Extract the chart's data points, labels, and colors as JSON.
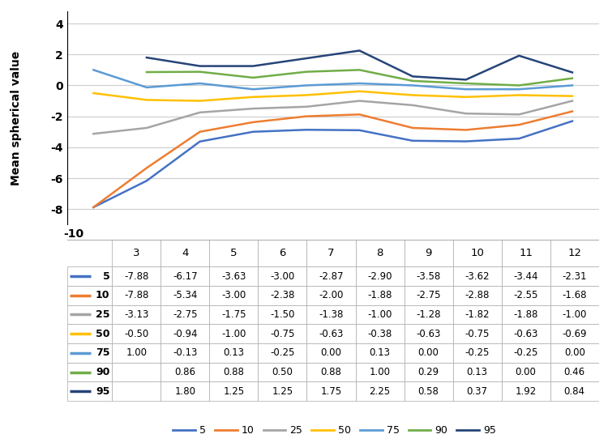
{
  "ages": [
    3,
    4,
    5,
    6,
    7,
    8,
    9,
    10,
    11,
    12
  ],
  "series": {
    "5": {
      "values": [
        -7.88,
        -6.17,
        -3.63,
        -3.0,
        -2.87,
        -2.9,
        -3.58,
        -3.62,
        -3.44,
        -2.31
      ],
      "color": "#4472C4",
      "start_age": 3
    },
    "10": {
      "values": [
        -7.88,
        -5.34,
        -3.0,
        -2.38,
        -2.0,
        -1.88,
        -2.75,
        -2.88,
        -2.55,
        -1.68
      ],
      "color": "#ED7D31",
      "start_age": 3
    },
    "25": {
      "values": [
        -3.13,
        -2.75,
        -1.75,
        -1.5,
        -1.38,
        -1.0,
        -1.28,
        -1.82,
        -1.88,
        -1.0
      ],
      "color": "#A5A5A5",
      "start_age": 3
    },
    "50": {
      "values": [
        -0.5,
        -0.94,
        -1.0,
        -0.75,
        -0.63,
        -0.38,
        -0.63,
        -0.75,
        -0.63,
        -0.69
      ],
      "color": "#FFC000",
      "start_age": 3
    },
    "75": {
      "values": [
        1.0,
        -0.13,
        0.13,
        -0.25,
        0.0,
        0.13,
        0.0,
        -0.25,
        -0.25,
        0.0
      ],
      "color": "#5B9BD5",
      "start_age": 3
    },
    "90": {
      "values": [
        0.86,
        0.88,
        0.5,
        0.88,
        1.0,
        0.29,
        0.13,
        0.0,
        0.46
      ],
      "color": "#70AD47",
      "start_age": 4
    },
    "95": {
      "values": [
        1.8,
        1.25,
        1.25,
        1.75,
        2.25,
        0.58,
        0.37,
        1.92,
        0.84
      ],
      "color": "#264478",
      "start_age": 4
    }
  },
  "ylabel": "Mean spherical value",
  "yticks_chart": [
    4,
    2,
    0,
    -2,
    -4,
    -6,
    -8
  ],
  "ylim_chart": [
    -9.0,
    4.8
  ],
  "table_rows": [
    "5",
    "10",
    "25",
    "50",
    "75",
    "90",
    "95"
  ],
  "table_data": {
    "5": [
      -7.88,
      -6.17,
      -3.63,
      -3.0,
      -2.87,
      -2.9,
      -3.58,
      -3.62,
      -3.44,
      -2.31
    ],
    "10": [
      -7.88,
      -5.34,
      -3.0,
      -2.38,
      -2.0,
      -1.88,
      -2.75,
      -2.88,
      -2.55,
      -1.68
    ],
    "25": [
      -3.13,
      -2.75,
      -1.75,
      -1.5,
      -1.38,
      -1.0,
      -1.28,
      -1.82,
      -1.88,
      -1.0
    ],
    "50": [
      -0.5,
      -0.94,
      -1.0,
      -0.75,
      -0.63,
      -0.38,
      -0.63,
      -0.75,
      -0.63,
      -0.69
    ],
    "75": [
      1.0,
      -0.13,
      0.13,
      -0.25,
      0.0,
      0.13,
      0.0,
      -0.25,
      -0.25,
      0.0
    ],
    "90": [
      null,
      0.86,
      0.88,
      0.5,
      0.88,
      1.0,
      0.29,
      0.13,
      0.0,
      0.46
    ],
    "95": [
      null,
      1.8,
      1.25,
      1.25,
      1.75,
      2.25,
      0.58,
      0.37,
      1.92,
      0.84
    ]
  },
  "legend_labels": [
    "5",
    "10",
    "25",
    "50",
    "75",
    "90",
    "95"
  ],
  "legend_colors": [
    "#4472C4",
    "#ED7D31",
    "#A5A5A5",
    "#FFC000",
    "#5B9BD5",
    "#70AD47",
    "#264478"
  ]
}
